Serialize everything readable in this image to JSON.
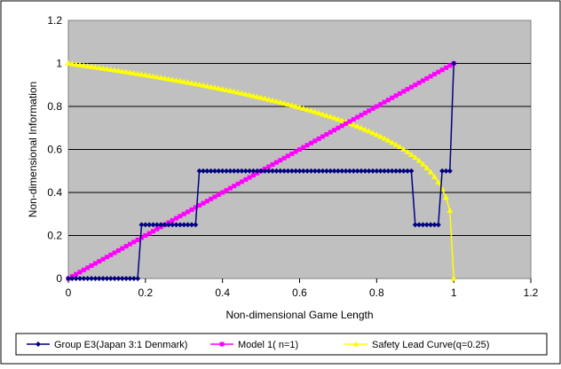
{
  "chart_data": {
    "type": "line",
    "title": "",
    "xlabel": "Non-dimensional Game Length",
    "ylabel": "Non-dimensional Information",
    "xlim": [
      0,
      1.2
    ],
    "ylim": [
      0,
      1.2
    ],
    "x_ticks": [
      "0",
      "0.2",
      "0.4",
      "0.6",
      "0.8",
      "1",
      "1.2"
    ],
    "y_ticks": [
      "0",
      "0.2",
      "0.4",
      "0.6",
      "0.8",
      "1",
      "1.2"
    ],
    "grid": "horizontal",
    "plot_background": "#c0c0c0",
    "legend_position": "bottom",
    "series": [
      {
        "name": "Group E3(Japan 3:1 Denmark)",
        "color": "#000080",
        "marker": "diamond",
        "points": [
          [
            0,
            0
          ],
          [
            0.18,
            0
          ],
          [
            0.19,
            0.25
          ],
          [
            0.33,
            0.25
          ],
          [
            0.34,
            0.5
          ],
          [
            0.89,
            0.5
          ],
          [
            0.9,
            0.25
          ],
          [
            0.96,
            0.25
          ],
          [
            0.97,
            0.5
          ],
          [
            0.99,
            0.5
          ],
          [
            1.0,
            1.0
          ]
        ]
      },
      {
        "name": "Model 1( n=1)",
        "color": "#ff00ff",
        "marker": "square",
        "points": [
          [
            0,
            0
          ],
          [
            1,
            1
          ]
        ]
      },
      {
        "name": "Safety Lead Curve(q=0.25)",
        "color": "#ffff00",
        "marker": "triangle",
        "formula": "y = (1 - x)^0.25",
        "points": [
          [
            0,
            1
          ],
          [
            0.2,
            0.946
          ],
          [
            0.4,
            0.88
          ],
          [
            0.6,
            0.795
          ],
          [
            0.8,
            0.669
          ],
          [
            0.9,
            0.562
          ],
          [
            0.95,
            0.473
          ],
          [
            0.99,
            0.316
          ],
          [
            1,
            0
          ]
        ]
      }
    ]
  }
}
